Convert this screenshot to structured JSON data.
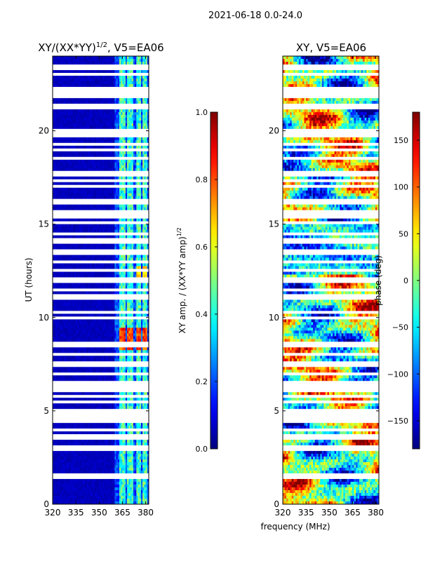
{
  "figure": {
    "suptitle": "2021-06-18 0.0-24.0",
    "xlabel": "frequency (MHz)"
  },
  "chart_data": [
    {
      "type": "heatmap",
      "title": "XY/(XX*YY)^1/2, V5=EA06",
      "title_main": "XY/(XX*YY)",
      "title_sup": "1/2",
      "title_tail": ", V5=EA06",
      "xlabel": "frequency (MHz)",
      "ylabel": "UT (hours)",
      "xlim": [
        320,
        382
      ],
      "ylim": [
        0,
        24
      ],
      "xticks": [
        320,
        335,
        350,
        365,
        380
      ],
      "yticks": [
        0,
        5,
        10,
        15,
        20
      ],
      "colorbar": {
        "label": "XY amp. / (XX*YY amp)^1/2",
        "label_main": "XY amp. / (XX*YY amp)",
        "label_sup": "1/2",
        "range": [
          0.0,
          1.0
        ],
        "ticks": [
          "0.0",
          "0.2",
          "0.4",
          "0.6",
          "0.8",
          "1.0"
        ],
        "tick_values": [
          0.0,
          0.2,
          0.4,
          0.6,
          0.8,
          1.0
        ],
        "colormap": "jet"
      },
      "bright_channel_bands_mhz": [
        [
          363,
          367
        ],
        [
          368,
          372
        ],
        [
          374,
          377
        ],
        [
          378,
          381
        ]
      ],
      "hot_time_range_hours": [
        8.2,
        9.5
      ],
      "hot_time_range_2_hours": [
        11.8,
        12.8
      ]
    },
    {
      "type": "heatmap",
      "title": "XY, V5=EA06",
      "xlabel": "frequency (MHz)",
      "ylabel": "",
      "xlim": [
        320,
        382
      ],
      "ylim": [
        0,
        24
      ],
      "xticks": [
        320,
        335,
        350,
        365,
        380
      ],
      "yticks": [
        0,
        5,
        10,
        15,
        20
      ],
      "colorbar": {
        "label": "phase (deg)",
        "range": [
          -180,
          180
        ],
        "ticks": [
          "−150",
          "−100",
          "−50",
          "0",
          "50",
          "100",
          "150"
        ],
        "tick_values": [
          -150,
          -100,
          -50,
          0,
          50,
          100,
          150
        ],
        "colormap": "jet"
      }
    }
  ],
  "flagged_times_hours": [
    1.45,
    1.6,
    3.0,
    3.6,
    4.0,
    4.4,
    4.6,
    4.8,
    5.0,
    5.5,
    5.8,
    6.15,
    6.3,
    6.55,
    7.0,
    7.5,
    8.0,
    8.5,
    8.6,
    10.0,
    10.3,
    11.0,
    11.2,
    11.5,
    12.0,
    12.5,
    13.0,
    13.5,
    14.0,
    14.2,
    14.5,
    15.1,
    15.4,
    15.6,
    16.2,
    17.0,
    17.3,
    17.7,
    18.5,
    19.0,
    19.3,
    19.8,
    20.0,
    21.3,
    21.9,
    22.2,
    23.0,
    23.4
  ],
  "colors": {
    "jet_low": "#00008f",
    "jet_high": "#800000",
    "flag": "#ffffff"
  }
}
